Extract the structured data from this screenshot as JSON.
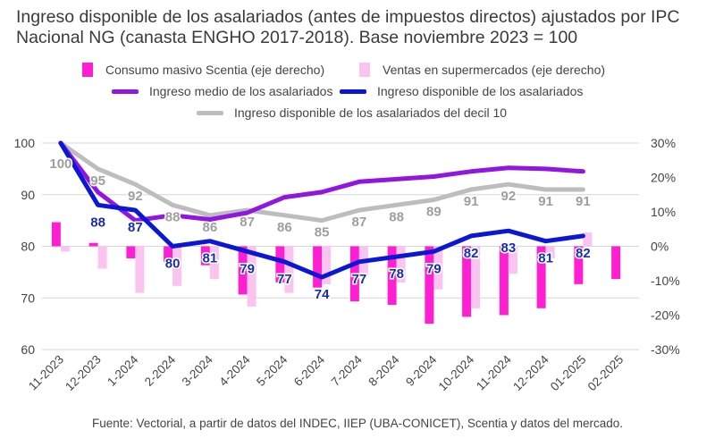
{
  "title": "Ingreso disponible de los asalariados (antes de impuestos directos) ajustados por IPC Nacional NG (canasta ENGHO 2017-2018). Base noviembre 2023 = 100",
  "source": "Fuente: Vectorial, a partir de datos del INDEC, IIEP (UBA-CONICET), Scentia y datos del mercado.",
  "legend": {
    "consumo": "Consumo masivo Scentia (eje derecho)",
    "ventas": "Ventas en supermercados (eje derecho)",
    "ingreso_medio": "Ingreso medio de los asalariados",
    "ingreso_disp": "Ingreso disponible de los asalariados",
    "decil10": "Ingreso disponible de los asalariados del decil 10"
  },
  "colors": {
    "consumo": "#ff1fd2",
    "ventas": "#fbc3ef",
    "ingreso_medio": "#8f17e0",
    "ingreso_disp": "#0a18d6",
    "decil10": "#bdbdbd",
    "label_disp": "#1a2db0",
    "label_decil": "#9e9e9e"
  },
  "chart_data": {
    "type": "bar+line",
    "categories": [
      "11-2023",
      "12-2023",
      "1-2024",
      "2-2024",
      "3-2024",
      "4-2024",
      "5-2024",
      "6-2024",
      "7-2024",
      "8-2024",
      "9-2024",
      "10-2024",
      "11-2024",
      "12-2024",
      "01-2025",
      "02-2025"
    ],
    "left_axis": {
      "range": [
        60,
        100
      ],
      "ticks": [
        "60",
        "70",
        "80",
        "90",
        "100"
      ]
    },
    "right_axis": {
      "range": [
        -0.3,
        0.3
      ],
      "ticks": [
        "-30%",
        "-20%",
        "-10%",
        "0%",
        "10%",
        "20%",
        "30%"
      ]
    },
    "bars": [
      {
        "name": "Consumo masivo Scentia (eje derecho)",
        "axis": "right",
        "values": [
          0.07,
          0.01,
          -0.035,
          -0.045,
          -0.055,
          -0.14,
          -0.105,
          -0.12,
          -0.16,
          -0.17,
          -0.225,
          -0.205,
          -0.2,
          -0.18,
          -0.11,
          -0.095
        ]
      },
      {
        "name": "Ventas en supermercados (eje derecho)",
        "axis": "right",
        "values": [
          -0.015,
          -0.065,
          -0.135,
          -0.115,
          -0.095,
          -0.175,
          -0.135,
          -0.11,
          -0.085,
          -0.105,
          -0.125,
          -0.18,
          -0.08,
          -0.035,
          0.04,
          null
        ]
      }
    ],
    "lines": [
      {
        "name": "Ingreso medio de los asalariados",
        "axis": "left",
        "values": [
          100,
          90.5,
          85,
          86,
          85.2,
          86.5,
          89.5,
          90.5,
          92.5,
          93,
          93.5,
          94.5,
          95.2,
          95,
          94.5,
          null
        ]
      },
      {
        "name": "Ingreso disponible de los asalariados",
        "axis": "left",
        "values": [
          100,
          88,
          87,
          80,
          81,
          79,
          77,
          74,
          77,
          78,
          79,
          82,
          83,
          81,
          82,
          null
        ]
      },
      {
        "name": "Ingreso disponible de los asalariados del decil 10",
        "axis": "left",
        "values": [
          100,
          95,
          92,
          88,
          86,
          87,
          86,
          85,
          87,
          88,
          89,
          91,
          92,
          91,
          91,
          null
        ]
      }
    ],
    "data_labels": {
      "ingreso_disp": [
        "",
        "88",
        "87",
        "80",
        "81",
        "79",
        "77",
        "74",
        "77",
        "78",
        "79",
        "82",
        "83",
        "81",
        "82",
        ""
      ],
      "decil10": [
        "100",
        "95",
        "92",
        "88",
        "86",
        "87",
        "86",
        "85",
        "87",
        "88",
        "89",
        "91",
        "92",
        "91",
        "91",
        ""
      ]
    },
    "grid": "horizontal",
    "legend_position": "top"
  }
}
